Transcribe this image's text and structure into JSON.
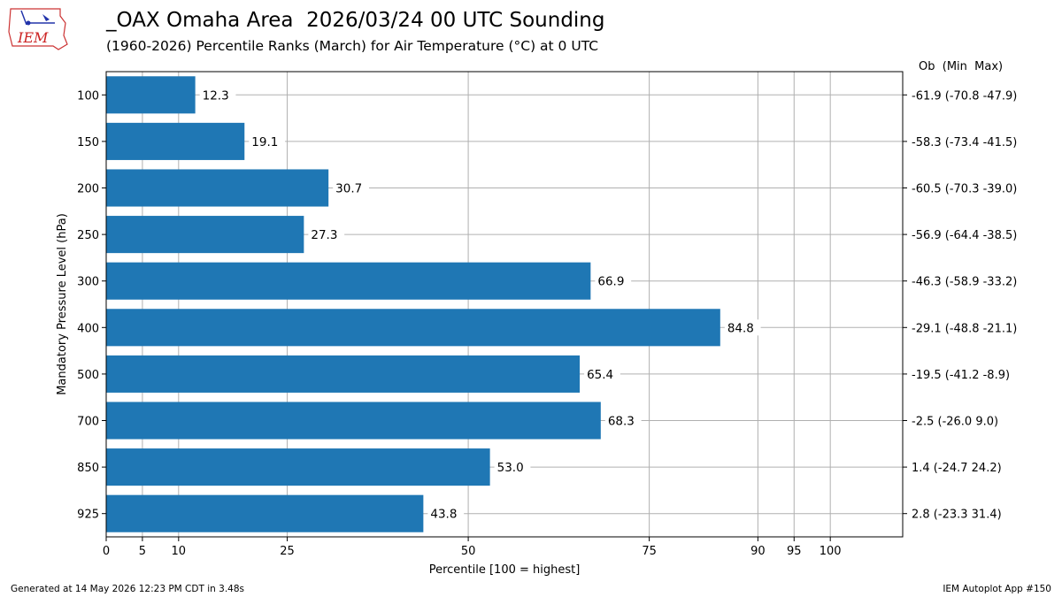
{
  "header": {
    "title": "_OAX Omaha Area  2026/03/24 00 UTC Sounding",
    "subtitle": "(1960-2026) Percentile Ranks (March) for Air Temperature (°C) at 0 UTC",
    "right_column_header": "Ob  (Min  Max)",
    "logo_text": "IEM"
  },
  "footer": {
    "generated": "Generated at 14 May 2026 12:23 PM CDT in 3.48s",
    "app": "IEM Autoplot App #150"
  },
  "chart_data": {
    "type": "bar",
    "orientation": "horizontal",
    "xlabel": "Percentile [100 = highest]",
    "ylabel": "Mandatory Pressure Level (hPa)",
    "xlim": [
      0,
      110
    ],
    "xticks": [
      0,
      5,
      10,
      25,
      50,
      75,
      90,
      95,
      100
    ],
    "grid": true,
    "bar_color": "#1f77b4",
    "categories": [
      "100",
      "150",
      "200",
      "250",
      "300",
      "400",
      "500",
      "700",
      "850",
      "925"
    ],
    "values": [
      12.3,
      19.1,
      30.7,
      27.3,
      66.9,
      84.8,
      65.4,
      68.3,
      53.0,
      43.8
    ],
    "value_labels": [
      "12.3",
      "19.1",
      "30.7",
      "27.3",
      "66.9",
      "84.8",
      "65.4",
      "68.3",
      "53.0",
      "43.8"
    ],
    "right_labels": [
      "-61.9 (-70.8 -47.9)",
      "-58.3 (-73.4 -41.5)",
      "-60.5 (-70.3 -39.0)",
      "-56.9 (-64.4 -38.5)",
      "-46.3 (-58.9 -33.2)",
      "-29.1 (-48.8 -21.1)",
      "-19.5 (-41.2 -8.9)",
      "-2.5 (-26.0 9.0)",
      "1.4 (-24.7 24.2)",
      "2.8 (-23.3 31.4)"
    ]
  }
}
